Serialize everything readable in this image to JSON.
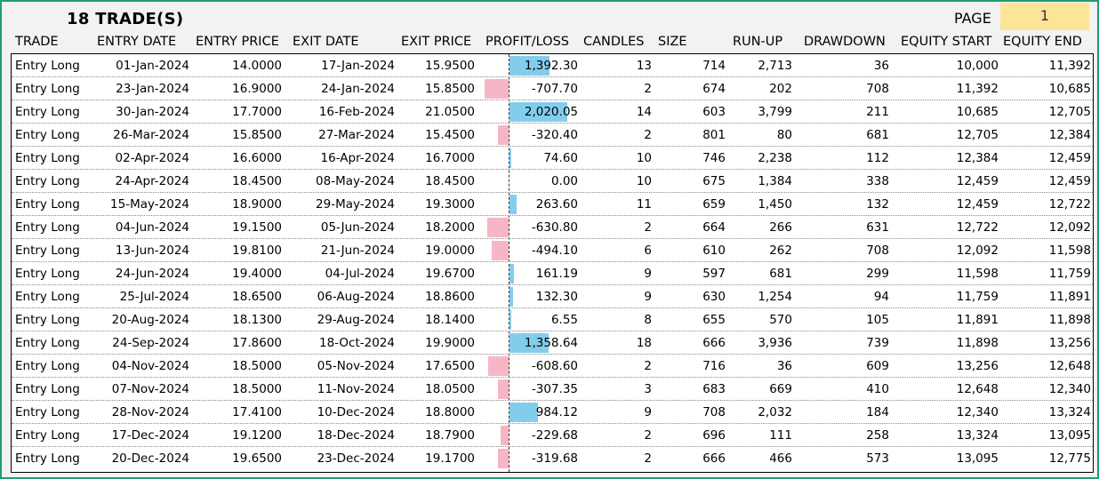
{
  "header": {
    "trade_count": "18",
    "trade_label": "TRADE(S)",
    "page_label": "PAGE",
    "page_value": "1"
  },
  "columns": {
    "trade": "TRADE",
    "entry_date": "ENTRY DATE",
    "entry_price": "ENTRY PRICE",
    "exit_date": "EXIT DATE",
    "exit_price": "EXIT PRICE",
    "profit_loss": "PROFIT/LOSS",
    "candles": "CANDLES",
    "size": "SIZE",
    "run_up": "RUN-UP",
    "drawdown": "DRAWDOWN",
    "equity_start": "EQUITY START",
    "equity_end": "EQUITY END"
  },
  "colors": {
    "profit_bar": "#83cdec",
    "loss_bar": "#f7b6c6",
    "frame_border": "#1e9c73",
    "page_box": "#fde598"
  },
  "rows": [
    {
      "trade": "Entry Long",
      "entry_date": "01-Jan-2024",
      "entry_price": "14.0000",
      "exit_date": "17-Jan-2024",
      "exit_price": "15.9500",
      "pl": "1,392.30",
      "pl_value": 1392.3,
      "candles": "13",
      "size": "714",
      "run_up": "2,713",
      "drawdown": "36",
      "equity_start": "10,000",
      "equity_end": "11,392"
    },
    {
      "trade": "Entry Long",
      "entry_date": "23-Jan-2024",
      "entry_price": "16.9000",
      "exit_date": "24-Jan-2024",
      "exit_price": "15.8500",
      "pl": "-707.70",
      "pl_value": -707.7,
      "candles": "2",
      "size": "674",
      "run_up": "202",
      "drawdown": "708",
      "equity_start": "11,392",
      "equity_end": "10,685"
    },
    {
      "trade": "Entry Long",
      "entry_date": "30-Jan-2024",
      "entry_price": "17.7000",
      "exit_date": "16-Feb-2024",
      "exit_price": "21.0500",
      "pl": "2,020.05",
      "pl_value": 2020.05,
      "candles": "14",
      "size": "603",
      "run_up": "3,799",
      "drawdown": "211",
      "equity_start": "10,685",
      "equity_end": "12,705"
    },
    {
      "trade": "Entry Long",
      "entry_date": "26-Mar-2024",
      "entry_price": "15.8500",
      "exit_date": "27-Mar-2024",
      "exit_price": "15.4500",
      "pl": "-320.40",
      "pl_value": -320.4,
      "candles": "2",
      "size": "801",
      "run_up": "80",
      "drawdown": "681",
      "equity_start": "12,705",
      "equity_end": "12,384"
    },
    {
      "trade": "Entry Long",
      "entry_date": "02-Apr-2024",
      "entry_price": "16.6000",
      "exit_date": "16-Apr-2024",
      "exit_price": "16.7000",
      "pl": "74.60",
      "pl_value": 74.6,
      "candles": "10",
      "size": "746",
      "run_up": "2,238",
      "drawdown": "112",
      "equity_start": "12,384",
      "equity_end": "12,459"
    },
    {
      "trade": "Entry Long",
      "entry_date": "24-Apr-2024",
      "entry_price": "18.4500",
      "exit_date": "08-May-2024",
      "exit_price": "18.4500",
      "pl": "0.00",
      "pl_value": 0.0,
      "candles": "10",
      "size": "675",
      "run_up": "1,384",
      "drawdown": "338",
      "equity_start": "12,459",
      "equity_end": "12,459"
    },
    {
      "trade": "Entry Long",
      "entry_date": "15-May-2024",
      "entry_price": "18.9000",
      "exit_date": "29-May-2024",
      "exit_price": "19.3000",
      "pl": "263.60",
      "pl_value": 263.6,
      "candles": "11",
      "size": "659",
      "run_up": "1,450",
      "drawdown": "132",
      "equity_start": "12,459",
      "equity_end": "12,722"
    },
    {
      "trade": "Entry Long",
      "entry_date": "04-Jun-2024",
      "entry_price": "19.1500",
      "exit_date": "05-Jun-2024",
      "exit_price": "18.2000",
      "pl": "-630.80",
      "pl_value": -630.8,
      "candles": "2",
      "size": "664",
      "run_up": "266",
      "drawdown": "631",
      "equity_start": "12,722",
      "equity_end": "12,092"
    },
    {
      "trade": "Entry Long",
      "entry_date": "13-Jun-2024",
      "entry_price": "19.8100",
      "exit_date": "21-Jun-2024",
      "exit_price": "19.0000",
      "pl": "-494.10",
      "pl_value": -494.1,
      "candles": "6",
      "size": "610",
      "run_up": "262",
      "drawdown": "708",
      "equity_start": "12,092",
      "equity_end": "11,598"
    },
    {
      "trade": "Entry Long",
      "entry_date": "24-Jun-2024",
      "entry_price": "19.4000",
      "exit_date": "04-Jul-2024",
      "exit_price": "19.6700",
      "pl": "161.19",
      "pl_value": 161.19,
      "candles": "9",
      "size": "597",
      "run_up": "681",
      "drawdown": "299",
      "equity_start": "11,598",
      "equity_end": "11,759"
    },
    {
      "trade": "Entry Long",
      "entry_date": "25-Jul-2024",
      "entry_price": "18.6500",
      "exit_date": "06-Aug-2024",
      "exit_price": "18.8600",
      "pl": "132.30",
      "pl_value": 132.3,
      "candles": "9",
      "size": "630",
      "run_up": "1,254",
      "drawdown": "94",
      "equity_start": "11,759",
      "equity_end": "11,891"
    },
    {
      "trade": "Entry Long",
      "entry_date": "20-Aug-2024",
      "entry_price": "18.1300",
      "exit_date": "29-Aug-2024",
      "exit_price": "18.1400",
      "pl": "6.55",
      "pl_value": 6.55,
      "candles": "8",
      "size": "655",
      "run_up": "570",
      "drawdown": "105",
      "equity_start": "11,891",
      "equity_end": "11,898"
    },
    {
      "trade": "Entry Long",
      "entry_date": "24-Sep-2024",
      "entry_price": "17.8600",
      "exit_date": "18-Oct-2024",
      "exit_price": "19.9000",
      "pl": "1,358.64",
      "pl_value": 1358.64,
      "candles": "18",
      "size": "666",
      "run_up": "3,936",
      "drawdown": "739",
      "equity_start": "11,898",
      "equity_end": "13,256"
    },
    {
      "trade": "Entry Long",
      "entry_date": "04-Nov-2024",
      "entry_price": "18.5000",
      "exit_date": "05-Nov-2024",
      "exit_price": "17.6500",
      "pl": "-608.60",
      "pl_value": -608.6,
      "candles": "2",
      "size": "716",
      "run_up": "36",
      "drawdown": "609",
      "equity_start": "13,256",
      "equity_end": "12,648"
    },
    {
      "trade": "Entry Long",
      "entry_date": "07-Nov-2024",
      "entry_price": "18.5000",
      "exit_date": "11-Nov-2024",
      "exit_price": "18.0500",
      "pl": "-307.35",
      "pl_value": -307.35,
      "candles": "3",
      "size": "683",
      "run_up": "669",
      "drawdown": "410",
      "equity_start": "12,648",
      "equity_end": "12,340"
    },
    {
      "trade": "Entry Long",
      "entry_date": "28-Nov-2024",
      "entry_price": "17.4100",
      "exit_date": "10-Dec-2024",
      "exit_price": "18.8000",
      "pl": "984.12",
      "pl_value": 984.12,
      "candles": "9",
      "size": "708",
      "run_up": "2,032",
      "drawdown": "184",
      "equity_start": "12,340",
      "equity_end": "13,324"
    },
    {
      "trade": "Entry Long",
      "entry_date": "17-Dec-2024",
      "entry_price": "19.1200",
      "exit_date": "18-Dec-2024",
      "exit_price": "18.7900",
      "pl": "-229.68",
      "pl_value": -229.68,
      "candles": "2",
      "size": "696",
      "run_up": "111",
      "drawdown": "258",
      "equity_start": "13,324",
      "equity_end": "13,095"
    },
    {
      "trade": "Entry Long",
      "entry_date": "20-Dec-2024",
      "entry_price": "19.6500",
      "exit_date": "23-Dec-2024",
      "exit_price": "19.1700",
      "pl": "-319.68",
      "pl_value": -319.68,
      "candles": "2",
      "size": "666",
      "run_up": "466",
      "drawdown": "573",
      "equity_start": "13,095",
      "equity_end": "12,775"
    }
  ]
}
